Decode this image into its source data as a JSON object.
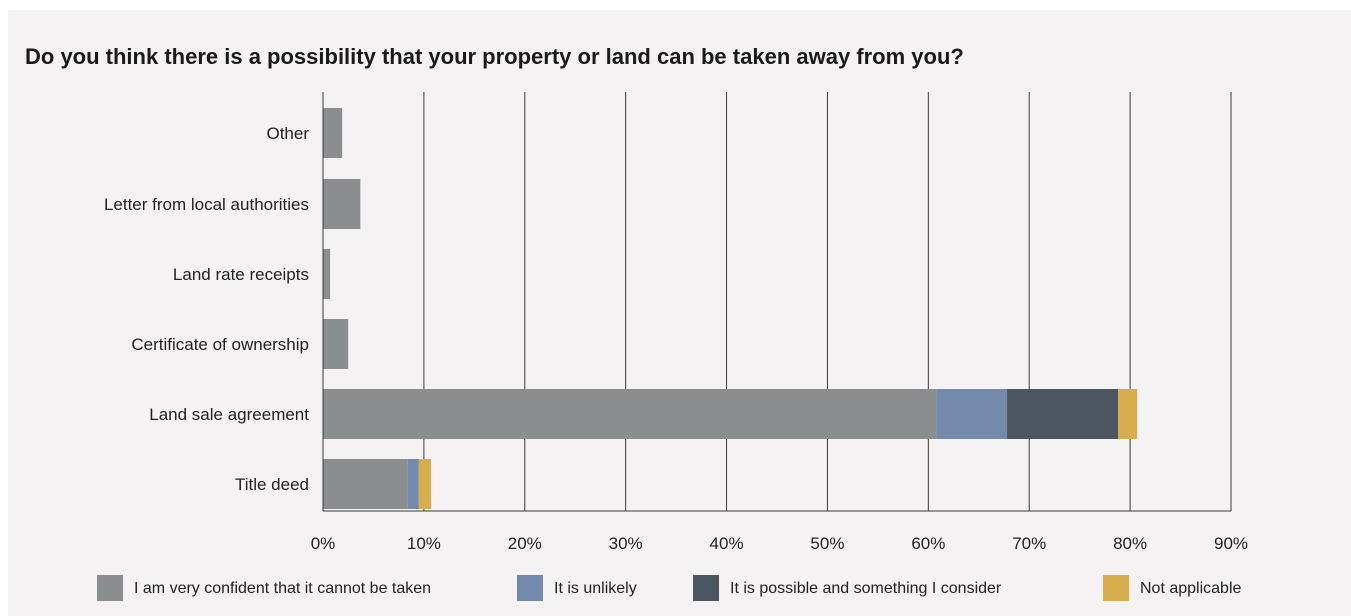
{
  "chart_data": {
    "type": "bar",
    "orientation": "horizontal",
    "stacked": true,
    "title": "Do you think there is a possibility that your property or land can be taken away from you?",
    "categories": [
      "Other",
      "Letter from local authorities",
      "Land rate receipts",
      "Certificate of ownership",
      "Land sale agreement",
      "Title deed"
    ],
    "series": [
      {
        "name": "I am very confident that it cannot be taken",
        "color": "#8c8d8f",
        "values": [
          1.9,
          3.7,
          0.7,
          2.5,
          60.8,
          8.4
        ]
      },
      {
        "name": "It is unlikely",
        "color": "#738aad",
        "values": [
          0,
          0,
          0,
          0,
          7.0,
          1.1
        ]
      },
      {
        "name": "It is possible and something I consider",
        "color": "#4a5761",
        "values": [
          0,
          0,
          0,
          0,
          11.0,
          0
        ]
      },
      {
        "name": "Not applicable",
        "color": "#d8ae4c",
        "values": [
          0,
          0,
          0,
          0,
          1.9,
          1.2
        ]
      }
    ],
    "xlim": [
      0,
      90
    ],
    "xticks": [
      "0%",
      "10%",
      "20%",
      "30%",
      "40%",
      "50%",
      "60%",
      "70%",
      "80%",
      "90%"
    ],
    "xlabel": "",
    "ylabel": "",
    "grid": "vertical",
    "legend": "bottom"
  }
}
